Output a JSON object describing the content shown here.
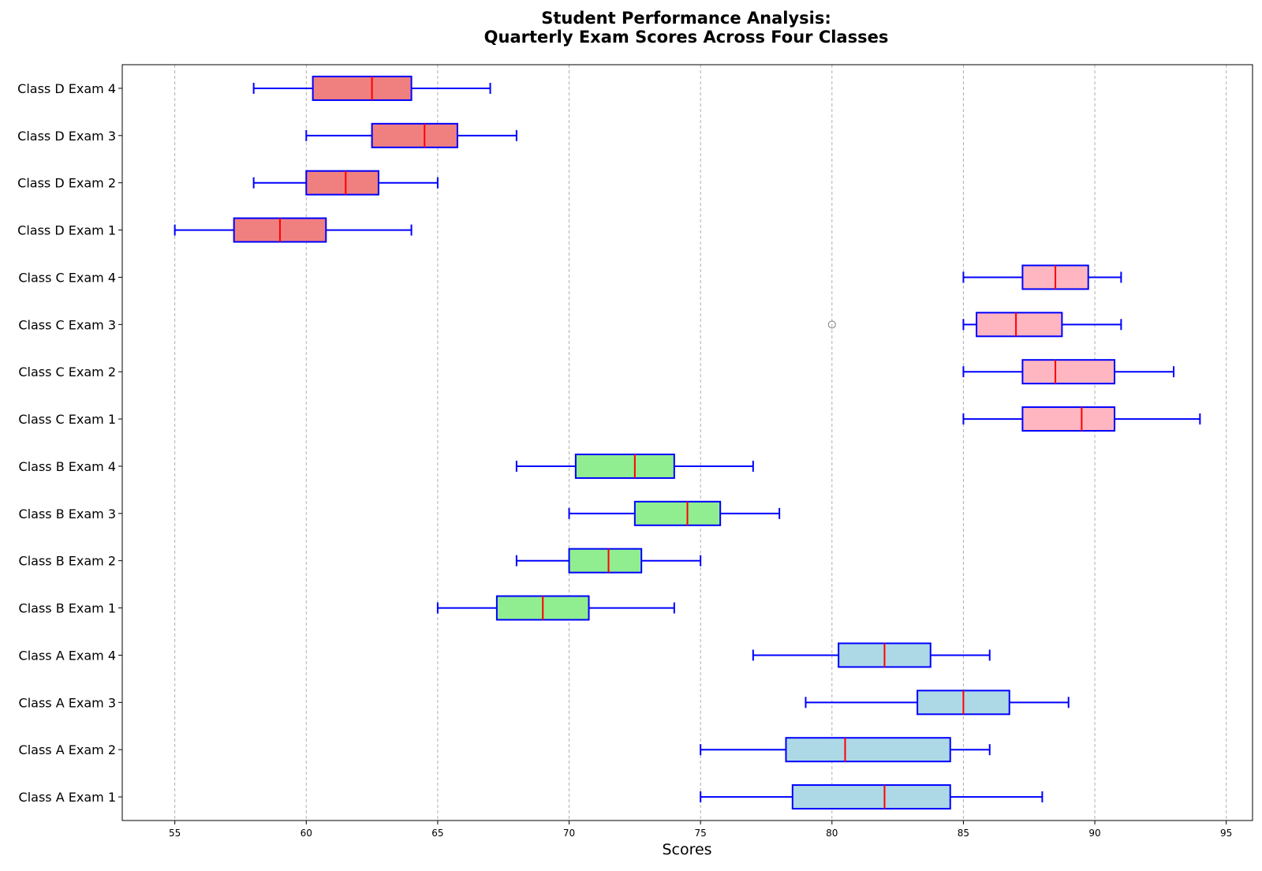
{
  "chart_data": {
    "type": "boxplot",
    "orientation": "horizontal",
    "title": "Student Performance Analysis:\nQuarterly Exam Scores Across Four Classes",
    "xlabel": "Scores",
    "ylabel": "",
    "xlim": [
      53,
      96
    ],
    "xticks": [
      55,
      60,
      65,
      70,
      75,
      80,
      85,
      90,
      95
    ],
    "grid": "vertical-dashed",
    "colors": {
      "Class A": "#add8e6",
      "Class B": "#90ee90",
      "Class C": "#ffb6c1",
      "Class D": "#f08080",
      "box_edge": "#0000ff",
      "whisker": "#0000ff",
      "median": "#ff0000",
      "outlier": "#808080"
    },
    "boxes": [
      {
        "label": "Class A Exam 1",
        "group": "Class A",
        "whislo": 75,
        "q1": 78.5,
        "median": 82,
        "q3": 84.5,
        "whishi": 88,
        "outliers": []
      },
      {
        "label": "Class A Exam 2",
        "group": "Class A",
        "whislo": 75,
        "q1": 78.25,
        "median": 80.5,
        "q3": 84.5,
        "whishi": 86,
        "outliers": []
      },
      {
        "label": "Class A Exam 3",
        "group": "Class A",
        "whislo": 79,
        "q1": 83.25,
        "median": 85,
        "q3": 86.75,
        "whishi": 89,
        "outliers": []
      },
      {
        "label": "Class A Exam 4",
        "group": "Class A",
        "whislo": 77,
        "q1": 80.25,
        "median": 82,
        "q3": 83.75,
        "whishi": 86,
        "outliers": []
      },
      {
        "label": "Class B Exam 1",
        "group": "Class B",
        "whislo": 65,
        "q1": 67.25,
        "median": 69,
        "q3": 70.75,
        "whishi": 74,
        "outliers": []
      },
      {
        "label": "Class B Exam 2",
        "group": "Class B",
        "whislo": 68,
        "q1": 70,
        "median": 71.5,
        "q3": 72.75,
        "whishi": 75,
        "outliers": []
      },
      {
        "label": "Class B Exam 3",
        "group": "Class B",
        "whislo": 70,
        "q1": 72.5,
        "median": 74.5,
        "q3": 75.75,
        "whishi": 78,
        "outliers": []
      },
      {
        "label": "Class B Exam 4",
        "group": "Class B",
        "whislo": 68,
        "q1": 70.25,
        "median": 72.5,
        "q3": 74,
        "whishi": 77,
        "outliers": []
      },
      {
        "label": "Class C Exam 1",
        "group": "Class C",
        "whislo": 85,
        "q1": 87.25,
        "median": 89.5,
        "q3": 90.75,
        "whishi": 94,
        "outliers": []
      },
      {
        "label": "Class C Exam 2",
        "group": "Class C",
        "whislo": 85,
        "q1": 87.25,
        "median": 88.5,
        "q3": 90.75,
        "whishi": 93,
        "outliers": []
      },
      {
        "label": "Class C Exam 3",
        "group": "Class C",
        "whislo": 85,
        "q1": 85.5,
        "median": 87,
        "q3": 88.75,
        "whishi": 91,
        "outliers": [
          80
        ]
      },
      {
        "label": "Class C Exam 4",
        "group": "Class C",
        "whislo": 85,
        "q1": 87.25,
        "median": 88.5,
        "q3": 89.75,
        "whishi": 91,
        "outliers": []
      },
      {
        "label": "Class D Exam 1",
        "group": "Class D",
        "whislo": 55,
        "q1": 57.25,
        "median": 59,
        "q3": 60.75,
        "whishi": 64,
        "outliers": []
      },
      {
        "label": "Class D Exam 2",
        "group": "Class D",
        "whislo": 58,
        "q1": 60,
        "median": 61.5,
        "q3": 62.75,
        "whishi": 65,
        "outliers": []
      },
      {
        "label": "Class D Exam 3",
        "group": "Class D",
        "whislo": 60,
        "q1": 62.5,
        "median": 64.5,
        "q3": 65.75,
        "whishi": 68,
        "outliers": []
      },
      {
        "label": "Class D Exam 4",
        "group": "Class D",
        "whislo": 58,
        "q1": 60.25,
        "median": 62.5,
        "q3": 64,
        "whishi": 67,
        "outliers": []
      }
    ]
  }
}
